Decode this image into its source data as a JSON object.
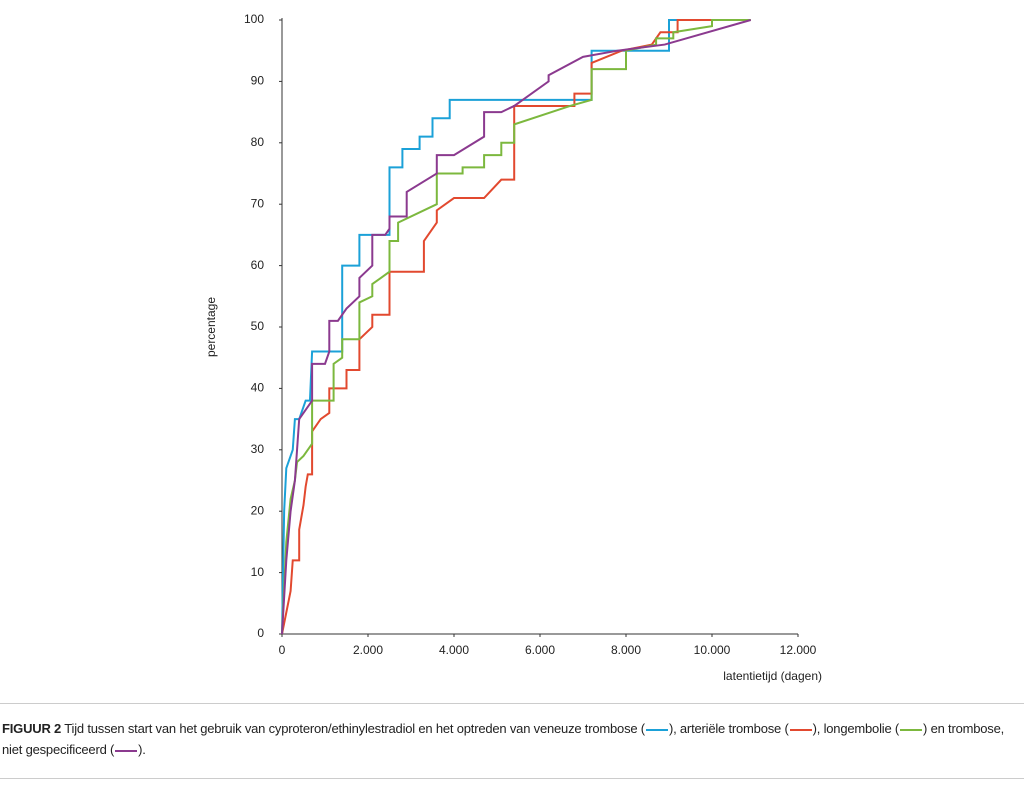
{
  "chart_data": {
    "type": "line",
    "y_label": "percentage",
    "x_label": "latentietijd (dagen)",
    "xlim": [
      0,
      12000
    ],
    "ylim": [
      0,
      100
    ],
    "xticks": [
      0,
      {
        "value": 2000,
        "label": "2.000"
      },
      {
        "value": 4000,
        "label": "4.000"
      },
      {
        "value": 6000,
        "label": "6.000"
      },
      {
        "value": 8000,
        "label": "8.000"
      },
      {
        "value": 10000,
        "label": "10.000"
      },
      {
        "value": 12000,
        "label": "12.000"
      }
    ],
    "yticks": [
      0,
      10,
      20,
      30,
      40,
      50,
      60,
      70,
      80,
      90,
      100
    ],
    "series": [
      {
        "color": "#1ba1d8",
        "x": [
          0,
          50,
          100,
          250,
          300,
          400,
          450,
          550,
          650,
          700,
          1400,
          1400,
          1800,
          1800,
          2500,
          2500,
          2800,
          2800,
          3200,
          3200,
          3500,
          3500,
          3900,
          3900,
          7200,
          7200,
          9000,
          9000,
          10900
        ],
        "values": [
          0,
          20,
          27,
          30,
          35,
          35,
          36,
          38,
          38,
          46,
          46,
          60,
          60,
          65,
          65,
          76,
          76,
          79,
          79,
          81,
          81,
          84,
          84,
          87,
          87,
          95,
          95,
          100,
          100
        ]
      },
      {
        "color": "#e2492f",
        "x": [
          0,
          200,
          250,
          400,
          400,
          450,
          500,
          550,
          600,
          700,
          700,
          900,
          1100,
          1100,
          1500,
          1500,
          1800,
          1800,
          2100,
          2100,
          2500,
          2500,
          3300,
          3300,
          3600,
          3600,
          4000,
          4700,
          5100,
          5400,
          5400,
          6800,
          6800,
          7200,
          7200,
          7900,
          8600,
          8800,
          9200,
          9200,
          10900
        ],
        "values": [
          0,
          7,
          12,
          12,
          17,
          19,
          21,
          24,
          26,
          26,
          33,
          35,
          36,
          40,
          40,
          43,
          43,
          48,
          50,
          52,
          52,
          59,
          59,
          64,
          67,
          69,
          71,
          71,
          74,
          74,
          86,
          86,
          88,
          88,
          93,
          95,
          96,
          98,
          98,
          100,
          100
        ]
      },
      {
        "color": "#7cb83e",
        "x": [
          0,
          100,
          200,
          300,
          350,
          500,
          600,
          700,
          700,
          1200,
          1200,
          1400,
          1400,
          1800,
          1800,
          2100,
          2100,
          2300,
          2500,
          2500,
          2700,
          2700,
          3600,
          3600,
          4200,
          4200,
          4700,
          4700,
          5100,
          5100,
          5400,
          5400,
          6700,
          7200,
          7200,
          8000,
          8000,
          8700,
          8700,
          9100,
          9100,
          10000,
          10000,
          10900
        ],
        "values": [
          0,
          15,
          22,
          25,
          28,
          29,
          30,
          31,
          38,
          38,
          44,
          45,
          48,
          48,
          54,
          55,
          57,
          58,
          59,
          64,
          64,
          67,
          70,
          75,
          75,
          76,
          76,
          78,
          78,
          80,
          80,
          83,
          86,
          87,
          92,
          92,
          95,
          96,
          97,
          97,
          98,
          99,
          100,
          100
        ]
      },
      {
        "color": "#8b3a8f",
        "x": [
          0,
          100,
          200,
          300,
          350,
          400,
          500,
          600,
          700,
          700,
          1000,
          1100,
          1100,
          1300,
          1500,
          1800,
          1800,
          2100,
          2100,
          2400,
          2500,
          2500,
          2900,
          2900,
          3600,
          3600,
          4000,
          4700,
          4700,
          5100,
          5400,
          5800,
          6200,
          6200,
          7000,
          7800,
          8900,
          10900
        ],
        "values": [
          0,
          12,
          20,
          25,
          30,
          35,
          36,
          37,
          38,
          44,
          44,
          46,
          51,
          51,
          53,
          55,
          58,
          60,
          65,
          65,
          66,
          68,
          68,
          72,
          75,
          78,
          78,
          81,
          85,
          85,
          86,
          88,
          90,
          91,
          94,
          95,
          96,
          100
        ]
      }
    ]
  },
  "caption": {
    "label": "FIGUUR 2",
    "parts": [
      "Tijd tussen start van het gebruik van cyproteron/ethinylestradiol en het optreden van veneuze trombose (",
      "), arteriële trombose (",
      "), longembolie (",
      ") en trombose, niet gespecificeerd (",
      ")."
    ]
  }
}
